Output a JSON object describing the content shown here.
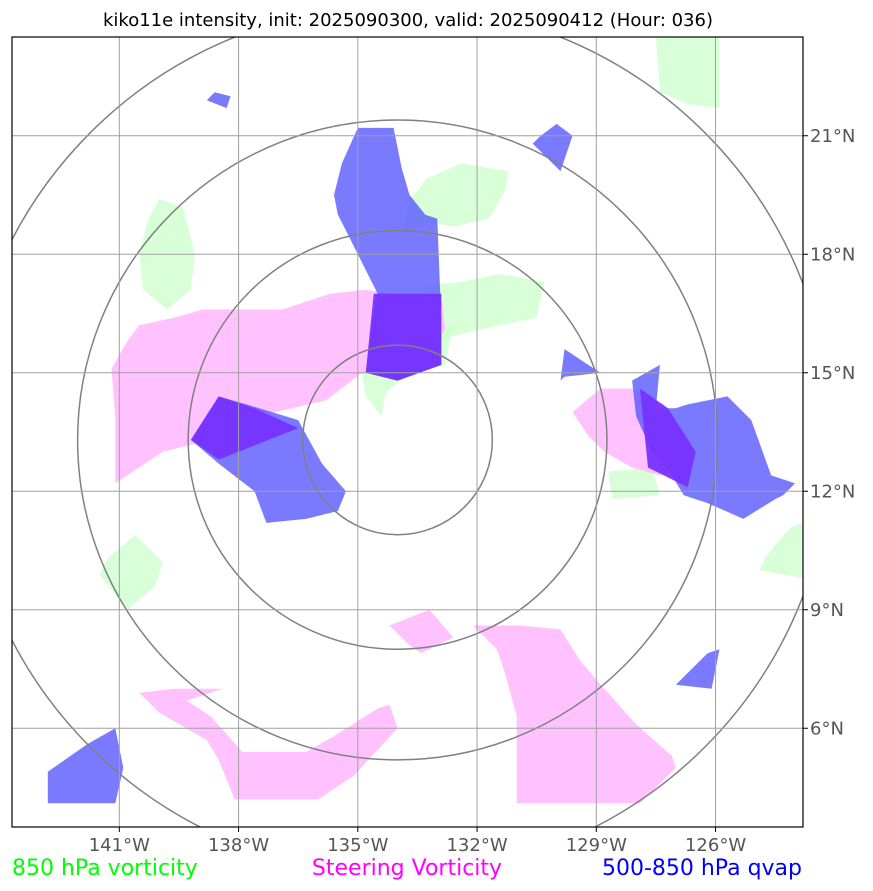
{
  "chart_data": {
    "type": "map",
    "title": "kiko11e intensity, init: 2025090300, valid: 2025090412 (Hour: 036)",
    "xlim": [
      -143.7,
      -123.8
    ],
    "ylim": [
      3.5,
      23.5
    ],
    "x_ticks": [
      -141,
      -138,
      -135,
      -132,
      -129,
      -126
    ],
    "x_tick_labels": [
      "141°W",
      "138°W",
      "135°W",
      "132°W",
      "129°W",
      "126°W"
    ],
    "y_ticks": [
      6,
      9,
      12,
      15,
      18,
      21
    ],
    "y_tick_labels": [
      "6°N",
      "9°N",
      "12°N",
      "15°N",
      "18°N",
      "21°N"
    ],
    "grid": true,
    "range_rings": {
      "center": [
        -134.0,
        13.3
      ],
      "radii_deg": [
        2.4,
        5.3,
        8.1,
        11.0
      ]
    },
    "legend": [
      {
        "label": "850 hPa vorticity",
        "color": "#00ff00"
      },
      {
        "label": "Steering Vorticity",
        "color": "#ff00ff"
      },
      {
        "label": "500-850 hPa qvap",
        "color": "#0000ff"
      }
    ],
    "layers": [
      {
        "name": "850 hPa vorticity",
        "fill": "#ccffcc",
        "opacity": 0.75,
        "polygons": [
          [
            [
              -126.2,
              23.5
            ],
            [
              -125.9,
              23.5
            ],
            [
              -125.9,
              21.7
            ],
            [
              -126.7,
              21.8
            ],
            [
              -127.4,
              22.1
            ],
            [
              -127.5,
              23.5
            ]
          ],
          [
            [
              -132.6,
              18.7
            ],
            [
              -131.7,
              18.9
            ],
            [
              -131.3,
              19.6
            ],
            [
              -131.2,
              20.1
            ],
            [
              -132.4,
              20.3
            ],
            [
              -133.3,
              19.9
            ],
            [
              -133.5,
              19.6
            ],
            [
              -133.7,
              19.4
            ],
            [
              -133.9,
              18.5
            ],
            [
              -133.2,
              18.8
            ]
          ],
          [
            [
              -139.1,
              18.0
            ],
            [
              -139.2,
              17.1
            ],
            [
              -139.8,
              16.6
            ],
            [
              -140.4,
              17.1
            ],
            [
              -140.5,
              18.0
            ],
            [
              -140.3,
              18.8
            ],
            [
              -140.0,
              19.4
            ],
            [
              -139.4,
              19.2
            ]
          ],
          [
            [
              -133.1,
              15.8
            ],
            [
              -131.9,
              16.1
            ],
            [
              -130.5,
              16.4
            ],
            [
              -130.3,
              17.3
            ],
            [
              -131.4,
              17.5
            ],
            [
              -132.4,
              17.3
            ],
            [
              -133.3,
              17.2
            ],
            [
              -133.5,
              16.4
            ]
          ],
          [
            [
              -132.6,
              16.3
            ],
            [
              -132.8,
              15.2
            ],
            [
              -133.8,
              14.9
            ],
            [
              -134.3,
              14.5
            ],
            [
              -134.4,
              13.9
            ],
            [
              -134.8,
              14.4
            ],
            [
              -134.9,
              15.0
            ]
          ],
          [
            [
              -127.4,
              11.9
            ],
            [
              -128.6,
              11.8
            ],
            [
              -128.7,
              12.5
            ],
            [
              -127.6,
              12.6
            ]
          ],
          [
            [
              -124.9,
              10.0
            ],
            [
              -123.8,
              9.8
            ],
            [
              -123.8,
              11.2
            ],
            [
              -124.1,
              11.1
            ],
            [
              -124.7,
              10.4
            ]
          ],
          [
            [
              -140.8,
              9.0
            ],
            [
              -140.1,
              9.6
            ],
            [
              -139.9,
              10.2
            ],
            [
              -140.6,
              10.9
            ],
            [
              -141.3,
              10.3
            ],
            [
              -141.5,
              9.9
            ]
          ]
        ]
      },
      {
        "name": "Steering Vorticity",
        "fill": "#ffbbff",
        "opacity": 0.9,
        "polygons": [
          [
            [
              -141.1,
              12.2
            ],
            [
              -139.9,
              13.0
            ],
            [
              -138.7,
              13.3
            ],
            [
              -138.5,
              13.7
            ],
            [
              -137.1,
              14.0
            ],
            [
              -135.8,
              14.3
            ],
            [
              -134.9,
              15.0
            ],
            [
              -133.3,
              15.4
            ],
            [
              -132.8,
              16.1
            ],
            [
              -132.9,
              17.0
            ],
            [
              -134.1,
              17.0
            ],
            [
              -134.8,
              17.1
            ],
            [
              -135.7,
              17.0
            ],
            [
              -136.9,
              16.6
            ],
            [
              -138.9,
              16.6
            ],
            [
              -139.6,
              16.4
            ],
            [
              -140.5,
              16.2
            ],
            [
              -140.8,
              15.8
            ],
            [
              -141.2,
              15.1
            ],
            [
              -141.1,
              13.9
            ]
          ],
          [
            [
              -129.6,
              14.0
            ],
            [
              -128.9,
              14.6
            ],
            [
              -128.1,
              14.6
            ],
            [
              -127.3,
              14.2
            ],
            [
              -126.8,
              13.5
            ],
            [
              -126.5,
              12.9
            ],
            [
              -127.4,
              12.4
            ],
            [
              -128.1,
              12.6
            ],
            [
              -128.8,
              13.0
            ],
            [
              -129.2,
              13.4
            ]
          ],
          [
            [
              -132.1,
              8.6
            ],
            [
              -131.5,
              8.0
            ],
            [
              -131.3,
              7.4
            ],
            [
              -131.0,
              6.3
            ],
            [
              -131.0,
              4.1
            ],
            [
              -127.9,
              4.1
            ],
            [
              -127.0,
              5.0
            ],
            [
              -127.1,
              5.3
            ],
            [
              -128.0,
              6.1
            ],
            [
              -128.8,
              7.0
            ],
            [
              -129.4,
              7.7
            ],
            [
              -129.9,
              8.5
            ],
            [
              -130.9,
              8.6
            ]
          ],
          [
            [
              -133.2,
              9.0
            ],
            [
              -134.2,
              8.6
            ],
            [
              -133.7,
              8.1
            ],
            [
              -133.4,
              7.9
            ],
            [
              -132.6,
              8.3
            ]
          ],
          [
            [
              -140.5,
              6.9
            ],
            [
              -140.0,
              6.4
            ],
            [
              -138.8,
              5.7
            ],
            [
              -138.5,
              5.2
            ],
            [
              -138.1,
              4.2
            ],
            [
              -136.0,
              4.2
            ],
            [
              -135.1,
              4.8
            ],
            [
              -134.0,
              6.0
            ],
            [
              -134.2,
              6.6
            ],
            [
              -134.5,
              6.5
            ],
            [
              -135.6,
              5.8
            ],
            [
              -136.3,
              5.4
            ],
            [
              -137.9,
              5.4
            ],
            [
              -138.7,
              6.3
            ],
            [
              -139.3,
              6.7
            ],
            [
              -138.4,
              7.0
            ],
            [
              -139.6,
              7.0
            ]
          ]
        ]
      },
      {
        "name": "500-850 hPa qvap",
        "fill": "#5555ff",
        "opacity": 0.78,
        "polygons": [
          [
            [
              -135.0,
              21.2
            ],
            [
              -134.1,
              21.2
            ],
            [
              -133.9,
              20.2
            ],
            [
              -133.7,
              19.5
            ],
            [
              -133.3,
              19.0
            ],
            [
              -133.0,
              18.9
            ],
            [
              -132.9,
              16.3
            ],
            [
              -132.9,
              15.2
            ],
            [
              -134.0,
              14.8
            ],
            [
              -134.8,
              15.0
            ],
            [
              -134.6,
              16.6
            ],
            [
              -134.5,
              17.0
            ],
            [
              -134.9,
              17.8
            ],
            [
              -135.3,
              18.6
            ],
            [
              -135.5,
              19.0
            ],
            [
              -135.6,
              19.5
            ],
            [
              -135.4,
              20.3
            ]
          ],
          [
            [
              -138.6,
              22.1
            ],
            [
              -138.2,
              22.0
            ],
            [
              -138.3,
              21.7
            ],
            [
              -138.8,
              21.9
            ]
          ],
          [
            [
              -130.4,
              21.0
            ],
            [
              -130.0,
              21.3
            ],
            [
              -129.6,
              21.0
            ],
            [
              -129.9,
              20.1
            ],
            [
              -130.6,
              20.8
            ]
          ],
          [
            [
              -129.9,
              14.8
            ],
            [
              -129.8,
              15.6
            ],
            [
              -128.9,
              15.0
            ],
            [
              -129.8,
              14.9
            ]
          ],
          [
            [
              -139.2,
              13.3
            ],
            [
              -138.5,
              14.4
            ],
            [
              -137.8,
              14.2
            ],
            [
              -136.5,
              13.8
            ],
            [
              -135.9,
              12.7
            ],
            [
              -135.3,
              12.0
            ],
            [
              -135.5,
              11.5
            ],
            [
              -136.3,
              11.3
            ],
            [
              -137.3,
              11.2
            ],
            [
              -137.6,
              12.0
            ],
            [
              -138.5,
              12.7
            ]
          ],
          [
            [
              -127.5,
              14.1
            ],
            [
              -127.0,
              14.1
            ],
            [
              -126.7,
              14.2
            ],
            [
              -125.7,
              14.4
            ],
            [
              -125.1,
              13.8
            ],
            [
              -124.6,
              12.4
            ],
            [
              -124.0,
              12.2
            ],
            [
              -124.3,
              11.9
            ],
            [
              -124.5,
              11.8
            ],
            [
              -125.3,
              11.3
            ],
            [
              -126.2,
              11.7
            ],
            [
              -126.8,
              11.9
            ],
            [
              -127.1,
              12.4
            ],
            [
              -127.6,
              13.0
            ],
            [
              -128.0,
              13.9
            ],
            [
              -128.1,
              14.8
            ],
            [
              -127.4,
              15.2
            ]
          ],
          [
            [
              -127.0,
              7.1
            ],
            [
              -126.1,
              7.0
            ],
            [
              -125.9,
              8.0
            ],
            [
              -126.2,
              7.9
            ]
          ],
          [
            [
              -141.8,
              5.6
            ],
            [
              -141.1,
              6.0
            ],
            [
              -140.9,
              5.0
            ],
            [
              -141.1,
              4.1
            ],
            [
              -142.8,
              4.1
            ],
            [
              -142.8,
              4.9
            ]
          ]
        ]
      },
      {
        "name": "Steering Vorticity / 500-850 hPa qvap overlap",
        "fill": "#7733ff",
        "opacity": 0.95,
        "polygons": [
          [
            [
              -134.6,
              17.0
            ],
            [
              -132.9,
              17.0
            ],
            [
              -132.9,
              15.2
            ],
            [
              -134.0,
              14.8
            ],
            [
              -134.8,
              15.0
            ]
          ],
          [
            [
              -139.2,
              13.3
            ],
            [
              -138.5,
              14.4
            ],
            [
              -137.6,
              14.1
            ],
            [
              -136.5,
              13.6
            ],
            [
              -137.5,
              13.2
            ],
            [
              -138.5,
              12.8
            ]
          ],
          [
            [
              -127.9,
              14.6
            ],
            [
              -127.2,
              14.1
            ],
            [
              -126.5,
              13.0
            ],
            [
              -126.7,
              12.1
            ],
            [
              -127.3,
              12.4
            ],
            [
              -127.7,
              12.6
            ]
          ]
        ]
      }
    ]
  }
}
